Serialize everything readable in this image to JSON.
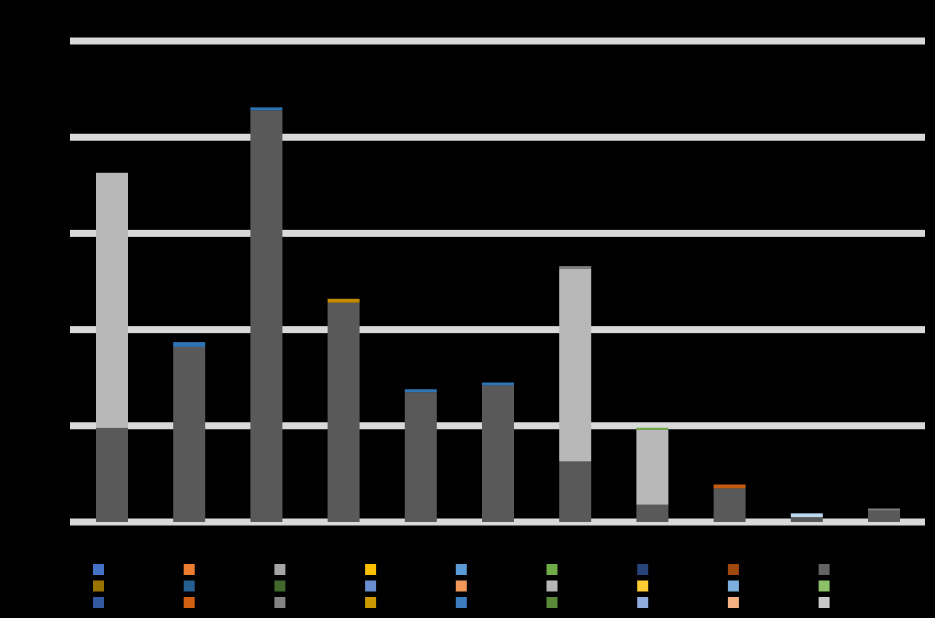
{
  "chart_data": {
    "type": "bar",
    "stacked": true,
    "title": "",
    "xlabel": "",
    "ylabel": "",
    "ylim": [
      0,
      5
    ],
    "gridlines": [
      0,
      1,
      2,
      3,
      4,
      5
    ],
    "grid": true,
    "legend_position": "bottom",
    "categories": [
      "",
      "",
      "",
      "",
      "",
      "",
      "",
      "",
      "",
      "",
      ""
    ],
    "colors": {
      "background": "#000000",
      "grid": "#d9d9d9",
      "dark_gray": "#595959",
      "light_gray": "#b8b8b8"
    },
    "series": [
      {
        "color": "#595959",
        "values": [
          0.98,
          1.82,
          4.28,
          2.28,
          1.35,
          1.42,
          0.63,
          0.18,
          0.35,
          0.05,
          0.12
        ]
      },
      {
        "color": "#b8b8b8",
        "values": [
          2.65,
          0,
          0,
          0,
          0,
          0,
          2.0,
          0.78,
          0,
          0,
          0
        ]
      },
      {
        "color": "#2e75b6",
        "values": [
          0,
          0.05,
          0.03,
          0,
          0.03,
          0.03,
          0,
          0,
          0,
          0,
          0
        ]
      },
      {
        "color": "#c58b00",
        "values": [
          0,
          0,
          0,
          0.04,
          0,
          0,
          0,
          0,
          0,
          0,
          0
        ]
      },
      {
        "color": "#7f7f7f",
        "values": [
          0,
          0,
          0,
          0,
          0,
          0,
          0.03,
          0,
          0,
          0,
          0.02
        ]
      },
      {
        "color": "#70ad47",
        "values": [
          0,
          0,
          0,
          0,
          0,
          0,
          0,
          0.02,
          0,
          0,
          0
        ]
      },
      {
        "color": "#c55a11",
        "values": [
          0,
          0,
          0,
          0,
          0,
          0,
          0,
          0,
          0.04,
          0,
          0
        ]
      },
      {
        "color": "#bdd7ee",
        "values": [
          0,
          0,
          0,
          0,
          0,
          0,
          0,
          0,
          0,
          0.04,
          0
        ]
      }
    ],
    "annotations": [
      {
        "category_index": 1,
        "text": "",
        "color": "#404040"
      },
      {
        "category_index": 2,
        "text": "",
        "color": "#1f4e79"
      },
      {
        "category_index": 7,
        "text": "",
        "color": "#70ad47"
      }
    ],
    "legend": {
      "rows": [
        [
          {
            "color": "#4472c4",
            "label": ""
          },
          {
            "color": "#ed7d31",
            "label": ""
          },
          {
            "color": "#a5a5a5",
            "label": ""
          },
          {
            "color": "#ffc000",
            "label": ""
          },
          {
            "color": "#5b9bd5",
            "label": ""
          },
          {
            "color": "#70ad47",
            "label": ""
          },
          {
            "color": "#264478",
            "label": ""
          },
          {
            "color": "#9e480e",
            "label": ""
          },
          {
            "color": "#636363",
            "label": ""
          }
        ],
        [
          {
            "color": "#997300",
            "label": ""
          },
          {
            "color": "#255e91",
            "label": ""
          },
          {
            "color": "#43682b",
            "label": ""
          },
          {
            "color": "#698ed0",
            "label": ""
          },
          {
            "color": "#f1975a",
            "label": ""
          },
          {
            "color": "#b7b7b7",
            "label": ""
          },
          {
            "color": "#ffcd33",
            "label": ""
          },
          {
            "color": "#7cafdd",
            "label": ""
          },
          {
            "color": "#8cc168",
            "label": ""
          }
        ],
        [
          {
            "color": "#335aa1",
            "label": ""
          },
          {
            "color": "#d26012",
            "label": ""
          },
          {
            "color": "#848484",
            "label": ""
          },
          {
            "color": "#cc9a00",
            "label": ""
          },
          {
            "color": "#3c7dc0",
            "label": ""
          },
          {
            "color": "#5a8a39",
            "label": ""
          },
          {
            "color": "#8faadc",
            "label": ""
          },
          {
            "color": "#f4b183",
            "label": ""
          },
          {
            "color": "#c9c9c9",
            "label": ""
          }
        ]
      ]
    }
  }
}
